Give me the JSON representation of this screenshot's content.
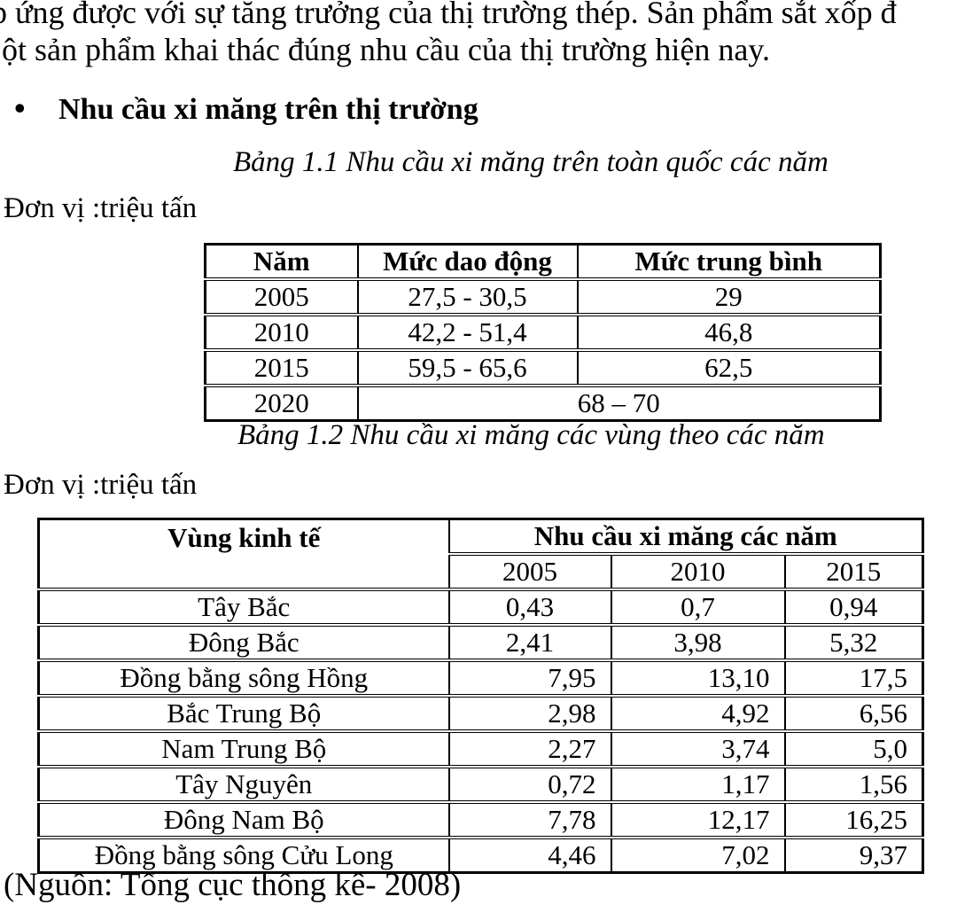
{
  "page": {
    "top_line1": "p ứng được với sự tăng trưởng của thị trường thép. Sản phẩm sắt xốp đ",
    "top_line2": "ột sản phẩm khai thác đúng nhu cầu của thị trường hiện nay.",
    "bullet": "•",
    "heading": "Nhu cầu xi măng trên thị trường",
    "source_note": "(Nguồn: Tổng cục thống kê- 2008)"
  },
  "table1": {
    "caption": "Bảng 1.1 Nhu cầu xi măng trên toàn quốc các năm",
    "unit_label": "Đơn vị :triệu tấn",
    "headers": [
      "Năm",
      "Mức dao động",
      "Mức trung bình"
    ],
    "rows": [
      {
        "cells": [
          "2005",
          "27,5 - 30,5",
          "29"
        ]
      },
      {
        "cells": [
          "2010",
          "42,2 - 51,4",
          "46,8"
        ]
      },
      {
        "cells": [
          "2015",
          "59,5 - 65,6",
          "62,5"
        ]
      },
      {
        "cells": [
          "2020",
          "68 – 70"
        ],
        "merged": true
      }
    ]
  },
  "table2": {
    "caption": "Bảng 1.2 Nhu cầu xi măng các vùng theo các năm",
    "unit_label": "Đơn vị :triệu tấn",
    "col1_header": "Vùng kinh tế",
    "group_header": "Nhu cầu xi măng các năm",
    "year_headers": [
      "2005",
      "2010",
      "2015"
    ],
    "rows": [
      {
        "region": "Tây Bắc",
        "values": [
          "0,43",
          "0,7",
          "0,94"
        ],
        "align": "center"
      },
      {
        "region": "Đông Bắc",
        "values": [
          "2,41",
          "3,98",
          "5,32"
        ],
        "align": "center"
      },
      {
        "region": "Đồng bằng sông Hồng",
        "values": [
          "7,95",
          "13,10",
          "17,5"
        ],
        "align": "right"
      },
      {
        "region": "Bắc Trung Bộ",
        "values": [
          "2,98",
          "4,92",
          "6,56"
        ],
        "align": "right"
      },
      {
        "region": "Nam Trung Bộ",
        "values": [
          "2,27",
          "3,74",
          "5,0"
        ],
        "align": "right"
      },
      {
        "region": "Tây Nguyên",
        "values": [
          "0,72",
          "1,17",
          "1,56"
        ],
        "align": "right"
      },
      {
        "region": "Đông Nam Bộ",
        "values": [
          "7,78",
          "12,17",
          "16,25"
        ],
        "align": "right"
      },
      {
        "region": "Đồng bằng sông Cửu Long",
        "values": [
          "4,46",
          "7,02",
          "9,37"
        ],
        "align": "right"
      }
    ]
  }
}
